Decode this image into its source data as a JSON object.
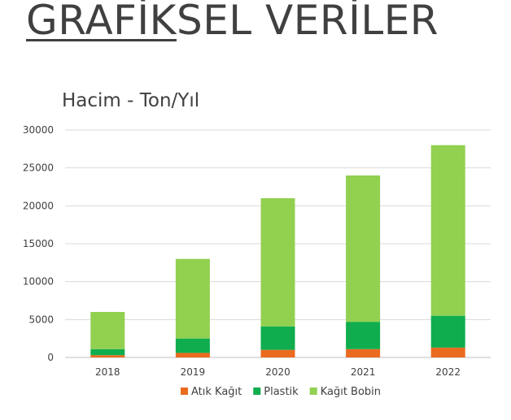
{
  "page": {
    "title_underlined": "GRAFİK",
    "title_rest": "SEL VERİLER"
  },
  "chart_data": {
    "type": "bar",
    "stacked": true,
    "title": "Hacim - Ton/Yıl",
    "categories": [
      "2018",
      "2019",
      "2020",
      "2021",
      "2022"
    ],
    "series": [
      {
        "name": "Atık Kağıt",
        "color": "#ea6a1f",
        "values": [
          300,
          600,
          1000,
          1100,
          1300
        ]
      },
      {
        "name": "Plastik",
        "color": "#0fad4e",
        "values": [
          800,
          1900,
          3100,
          3600,
          4200
        ]
      },
      {
        "name": "Kağıt Bobin",
        "color": "#92d050",
        "values": [
          4900,
          10500,
          16900,
          19300,
          22500
        ]
      }
    ],
    "ylim": [
      0,
      30000
    ],
    "yticks": [
      0,
      5000,
      10000,
      15000,
      20000,
      25000,
      30000
    ],
    "grid": true,
    "legend_position": "bottom"
  }
}
